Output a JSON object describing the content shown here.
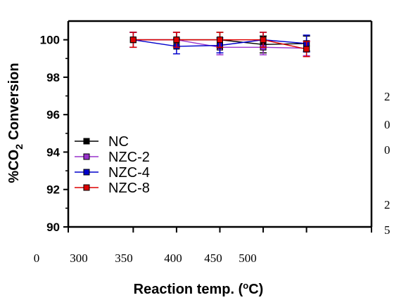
{
  "chart_data": {
    "type": "line",
    "title": "",
    "xlabel_parts": [
      "Reaction temp. (",
      "o",
      "C)"
    ],
    "ylabel_parts": [
      "%CO",
      "2",
      " Conversion"
    ],
    "x": [
      350,
      400,
      450,
      500,
      550
    ],
    "xlim": [
      275,
      625
    ],
    "ylim": [
      90,
      101
    ],
    "y_ticks": [
      "90",
      "92",
      "94",
      "96",
      "98",
      "100"
    ],
    "x_tick_labels": [
      "0",
      "300",
      "350",
      "400",
      "450",
      "500"
    ],
    "right_side_labels": [
      "2",
      "0",
      "0",
      "2",
      "5"
    ],
    "series": [
      {
        "name": "NC",
        "color": "#000000",
        "values": [
          100,
          100,
          100,
          99.75,
          99.8
        ],
        "errors": [
          0.4,
          0.4,
          0.4,
          0.45,
          0.4
        ]
      },
      {
        "name": "NZC-2",
        "color": "#9932cc",
        "values": [
          100,
          100,
          99.6,
          99.6,
          99.55
        ],
        "errors": [
          0.4,
          0.4,
          0.4,
          0.4,
          0.4
        ]
      },
      {
        "name": "NZC-4",
        "color": "#0000cc",
        "values": [
          100,
          99.65,
          99.7,
          100,
          99.8
        ],
        "errors": [
          0.4,
          0.4,
          0.4,
          0.4,
          0.45
        ]
      },
      {
        "name": "NZC-8",
        "color": "#dd0000",
        "values": [
          100,
          100,
          100,
          100,
          99.5
        ],
        "errors": [
          0.4,
          0.4,
          0.4,
          0.4,
          0.4
        ]
      }
    ],
    "legend_position": "left"
  }
}
